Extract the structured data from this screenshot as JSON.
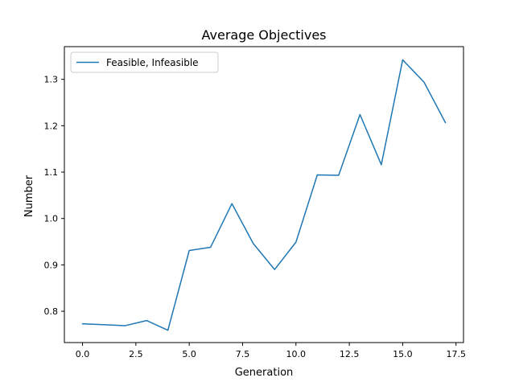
{
  "chart_data": {
    "type": "line",
    "title": "Average Objectives",
    "xlabel": "Generation",
    "ylabel": "Number",
    "xlim": [
      -0.85,
      17.85
    ],
    "ylim": [
      0.7325,
      1.3705
    ],
    "xticks": [
      0,
      2.5,
      5,
      7.5,
      10,
      12.5,
      15,
      17.5
    ],
    "xtick_labels": [
      "0.0",
      "2.5",
      "5.0",
      "7.5",
      "10.0",
      "12.5",
      "15.0",
      "17.5"
    ],
    "yticks": [
      0.8,
      0.9,
      1.0,
      1.1,
      1.2,
      1.3
    ],
    "ytick_labels": [
      "0.8",
      "0.9",
      "1.0",
      "1.1",
      "1.2",
      "1.3"
    ],
    "grid": false,
    "legend": "top-left",
    "series": [
      {
        "name": "Feasible, Infeasible",
        "color": "#1f77b4",
        "x": [
          0,
          1,
          2,
          3,
          4,
          5,
          6,
          7,
          8,
          9,
          10,
          11,
          12,
          13,
          14,
          15,
          16,
          17
        ],
        "y": [
          0.773,
          0.771,
          0.769,
          0.78,
          0.759,
          0.931,
          0.938,
          1.032,
          0.946,
          0.89,
          0.949,
          1.094,
          1.093,
          1.224,
          1.116,
          1.342,
          1.294,
          1.207
        ]
      }
    ]
  }
}
